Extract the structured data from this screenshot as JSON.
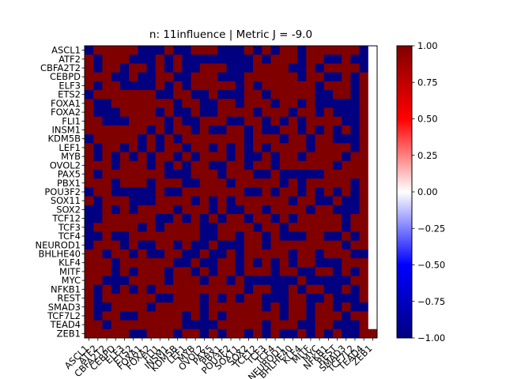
{
  "chart_data": {
    "type": "heatmap",
    "title": "n: 11influence | Metric J = -9.0",
    "xlabel": "",
    "ylabel": "",
    "labels": [
      "ASCL1",
      "ATF2",
      "CBFA2T2",
      "CEBPD",
      "ELF3",
      "ETS2",
      "FOXA1",
      "FOXA2",
      "FLI1",
      "INSM1",
      "KDM5B",
      "LEF1",
      "MYB",
      "OVOL2",
      "PAX5",
      "PBX1",
      "POU3F2",
      "SOX11",
      "SOX2",
      "TCF12",
      "TCF3",
      "TCF4",
      "NEUROD1",
      "BHLHE40",
      "KLF4",
      "MITF",
      "MYC",
      "NFKB1",
      "REST",
      "SMAD3",
      "TCF7L2",
      "TEAD4",
      "ZEB1"
    ],
    "colorbar": {
      "min": -1.0,
      "max": 1.0,
      "ticks": [
        "1.00",
        "0.75",
        "0.50",
        "0.25",
        "0.00",
        "−0.25",
        "−0.50",
        "−0.75",
        "−1.00"
      ],
      "colors": [
        "#000080",
        "#0000ff",
        "#ffffff",
        "#ff0000",
        "#800000"
      ]
    },
    "values": [
      "-1 1 1 1 1 1 -1 -1 -1 1 -1 -1 1 1 1 -1 -1 -1 1 -1 1 -1 1 1 -1 1 1 1 1 1 1 -1 0",
      "1 -1 1 1 1 -1 -1 -1 1 -1 1 -1 -1 -1 -1 -1 -1 -1 -1 1 -1 1 1 1 -1 1 1 -1 -1 1 -1 -1 0",
      "1 -1 1 1 -1 1 1 -1 1 -1 1 -1 -1 1 1 1 -1 -1 -1 1 1 1 1 -1 -1 1 -1 1 1 1 1 -1 0",
      "1 1 1 -1 -1 1 -1 -1 1 1 -1 -1 1 1 1 -1 -1 -1 1 1 1 1 1 1 -1 1 1 -1 -1 1 -1 1 0",
      "1 -1 1 1 -1 -1 -1 -1 1 -1 1 -1 1 1 1 1 1 -1 1 -1 1 1 1 1 1 1 -1 1 1 1 -1 1 0",
      "-1 1 1 1 1 1 1 1 -1 -1 1 1 -1 -1 1 -1 -1 -1 1 1 -1 1 1 1 1 1 -1 -1 1 1 -1 1 0",
      "1 -1 -1 1 1 1 1 1 1 1 -1 1 1 -1 -1 1 1 -1 1 1 1 -1 1 1 -1 1 -1 -1 -1 -1 -1 1 0",
      "1 -1 -1 -1 1 1 1 1 -1 1 -1 -1 1 -1 -1 1 1 1 1 -1 1 1 1 -1 1 1 -1 1 -1 -1 -1 1 0",
      "1 1 -1 -1 -1 1 1 1 1 -1 1 -1 -1 1 1 1 -1 -1 1 1 -1 1 -1 1 -1 1 1 1 1 -1 -1 1 0",
      "1 1 1 1 1 1 1 -1 1 -1 1 1 -1 1 -1 -1 1 1 -1 1 -1 -1 1 1 -1 1 -1 1 -1 1 -1 1 0",
      "-1 1 1 1 1 1 -1 1 -1 1 -1 1 1 1 1 1 1 1 -1 1 1 1 -1 1 1 -1 1 1 -1 -1 -1 1 0",
      "1 -1 1 1 -1 1 -1 1 -1 1 1 -1 1 1 -1 1 -1 1 -1 1 -1 1 1 1 1 -1 1 1 1 1 -1 1 0",
      "1 -1 1 -1 1 -1 1 -1 1 1 -1 1 -1 1 1 1 -1 1 -1 -1 1 -1 1 1 -1 1 1 1 1 -1 1 1 0",
      "1 1 1 -1 1 1 1 -1 1 -1 1 -1 1 1 -1 -1 1 1 -1 1 1 -1 1 1 1 1 1 1 -1 1 1 1 0",
      "1 -1 1 1 1 1 1 1 1 -1 -1 -1 1 1 1 -1 1 1 1 -1 -1 1 -1 -1 -1 -1 -1 1 1 1 1 1 0",
      "1 1 1 -1 1 1 1 -1 1 1 1 -1 -1 1 1 1 -1 1 1 1 1 1 -1 1 -1 1 1 1 1 1 -1 1 0",
      "-1 1 1 -1 -1 -1 -1 -1 1 -1 -1 1 1 1 1 1 1 1 -1 -1 1 -1 1 1 -1 1 -1 1 -1 1 -1 1 0",
      "1 -1 1 1 1 -1 -1 -1 1 1 1 1 -1 1 -1 1 -1 1 1 1 1 1 1 -1 1 1 -1 -1 1 -1 -1 1 0",
      "-1 -1 1 -1 1 -1 1 1 1 1 -1 1 1 1 -1 1 -1 -1 1 1 -1 1 1 1 1 -1 1 1 -1 -1 -1 1 0",
      "-1 -1 1 1 1 1 1 1 -1 -1 1 -1 1 -1 1 -1 1 1 -1 1 1 -1 1 -1 1 1 1 1 1 -1 1 1 0",
      "-1 1 1 1 1 1 -1 1 -1 1 1 1 1 -1 -1 1 1 1 1 -1 1 1 -1 1 1 1 1 1 1 -1 1 1 0",
      "-1 -1 1 -1 -1 1 1 1 1 1 1 1 1 -1 -1 1 1 -1 1 1 -1 1 -1 -1 -1 1 1 -1 -1 1 -1 1 0",
      "-1 1 1 1 -1 1 -1 -1 1 1 -1 1 -1 -1 1 -1 -1 -1 1 1 -1 1 1 1 1 1 1 1 1 -1 1 1 0",
      "1 1 -1 1 1 -1 1 -1 -1 1 1 -1 -1 1 -1 -1 1 -1 1 1 1 1 1 -1 1 1 -1 1 1 1 -1 -1 0",
      "1 1 1 -1 1 1 1 1 1 1 -1 -1 1 -1 -1 1 1 -1 1 -1 1 -1 1 -1 1 1 -1 -1 -1 1 1 1 0",
      "1 1 1 -1 1 -1 1 1 1 -1 1 1 -1 1 -1 1 1 -1 1 1 1 -1 1 1 -1 -1 1 1 -1 1 -1 1 0",
      "1 1 -1 -1 -1 1 1 1 1 -1 1 1 1 -1 1 1 -1 1 -1 -1 -1 -1 -1 -1 1 -1 -1 -1 -1 -1 1 1 0",
      "1 -1 1 -1 1 -1 1 -1 1 1 1 1 1 1 1 1 1 1 -1 1 1 -1 -1 1 -1 1 1 -1 -1 1 -1 1 0",
      "1 -1 1 1 1 1 1 1 -1 -1 1 1 1 -1 1 -1 1 -1 1 1 -1 -1 -1 1 1 -1 -1 1 -1 -1 -1 1 0",
      "1 -1 -1 1 1 1 1 -1 1 1 1 1 1 -1 1 1 1 1 1 1 -1 1 -1 1 1 -1 1 1 -1 1 -1 -1 0",
      "1 -1 1 1 -1 -1 1 1 1 1 1 -1 1 -1 1 -1 1 1 1 1 1 1 -1 1 1 -1 1 1 1 -1 1 1 0",
      "1 1 -1 1 1 1 1 1 1 1 1 -1 -1 -1 -1 1 1 1 1 1 -1 1 1 1 -1 -1 1 1 -1 -1 -1 1 0",
      "1 1 1 1 1 -1 -1 1 1 1 -1 1 1 -1 1 -1 1 1 -1 1 -1 1 -1 -1 1 -1 1 -1 1 -1 -1 1 1"
    ]
  }
}
